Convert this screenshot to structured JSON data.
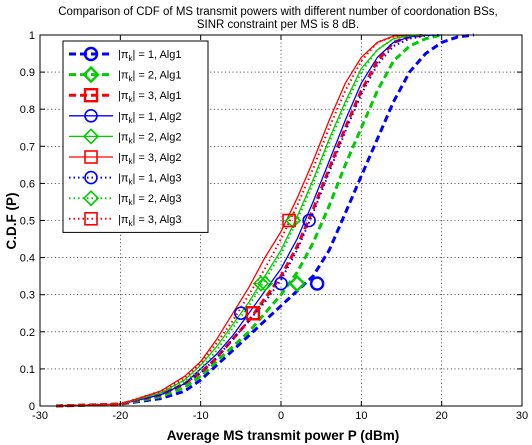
{
  "chart_data": {
    "type": "line",
    "title": "Comparison of CDF of MS transmit powers with different number of coordonation BSs,",
    "subtitle": "SINR constraint per MS is 8 dB.",
    "xlabel": "Average MS transmit power P (dBm)",
    "ylabel": "C.D.F (P)",
    "xlim": [
      -30,
      30
    ],
    "ylim": [
      0,
      1
    ],
    "xticks": [
      -30,
      -20,
      -10,
      0,
      10,
      20,
      30
    ],
    "yticks": [
      0,
      0.1,
      0.2,
      0.3,
      0.4,
      0.5,
      0.6,
      0.7,
      0.8,
      0.9,
      1
    ],
    "grid": true,
    "legend_position": "top-left",
    "series": [
      {
        "name": "|π_k| = 1, Alg1",
        "legend_prefix": "|π",
        "legend_sub": "k",
        "legend_suffix": "| = 1, Alg1",
        "color": "#0000ff",
        "dash": "dashed",
        "width": 3,
        "marker": "circle",
        "marker_points": [
          [
            4.5,
            0.33
          ]
        ],
        "x": [
          -28,
          -20,
          -15,
          -12,
          -10,
          -8,
          -6,
          -4,
          -2,
          0,
          2,
          4,
          6,
          8,
          10,
          12,
          14,
          16,
          18,
          20,
          22,
          24
        ],
        "y": [
          0,
          0.005,
          0.02,
          0.04,
          0.07,
          0.11,
          0.15,
          0.19,
          0.23,
          0.27,
          0.31,
          0.35,
          0.42,
          0.52,
          0.62,
          0.72,
          0.82,
          0.9,
          0.95,
          0.98,
          0.995,
          1
        ]
      },
      {
        "name": "|π_k| = 2, Alg1",
        "legend_prefix": "|π",
        "legend_sub": "k",
        "legend_suffix": "| = 2, Alg1",
        "color": "#00cc00",
        "dash": "dashed",
        "width": 3,
        "marker": "diamond",
        "marker_points": [
          [
            2,
            0.33
          ]
        ],
        "x": [
          -28,
          -20,
          -15,
          -12,
          -10,
          -8,
          -6,
          -4,
          -2,
          0,
          2,
          4,
          6,
          8,
          10,
          12,
          14,
          16,
          18,
          20
        ],
        "y": [
          0,
          0.005,
          0.025,
          0.05,
          0.08,
          0.12,
          0.16,
          0.2,
          0.25,
          0.3,
          0.36,
          0.44,
          0.54,
          0.65,
          0.75,
          0.85,
          0.93,
          0.97,
          0.99,
          1
        ]
      },
      {
        "name": "|π_k| = 3, Alg1",
        "legend_prefix": "|π",
        "legend_sub": "k",
        "legend_suffix": "| = 3, Alg1",
        "color": "#ff0000",
        "dash": "dashed",
        "width": 3,
        "marker": "square",
        "marker_points": [
          [
            -3.5,
            0.25
          ]
        ],
        "x": [
          -28,
          -20,
          -15,
          -12,
          -10,
          -8,
          -6,
          -4,
          -2,
          0,
          2,
          4,
          6,
          8,
          10,
          12,
          14,
          16,
          18
        ],
        "y": [
          0,
          0.005,
          0.03,
          0.06,
          0.09,
          0.13,
          0.18,
          0.23,
          0.29,
          0.35,
          0.43,
          0.53,
          0.64,
          0.75,
          0.85,
          0.93,
          0.98,
          0.995,
          1
        ]
      },
      {
        "name": "|π_k| = 1, Alg2",
        "legend_prefix": "|π",
        "legend_sub": "k",
        "legend_suffix": "| = 1, Alg2",
        "color": "#0000ff",
        "dash": "solid",
        "width": 1.3,
        "marker": "circle",
        "marker_points": [
          [
            -5,
            0.25
          ],
          [
            3.5,
            0.5
          ]
        ],
        "x": [
          -28,
          -20,
          -15,
          -12,
          -10,
          -8,
          -6,
          -4,
          -2,
          0,
          2,
          4,
          6,
          8,
          10,
          12,
          14,
          16,
          18,
          20
        ],
        "y": [
          0,
          0.005,
          0.03,
          0.06,
          0.1,
          0.14,
          0.19,
          0.25,
          0.31,
          0.37,
          0.45,
          0.55,
          0.66,
          0.77,
          0.87,
          0.94,
          0.98,
          0.995,
          0.999,
          1
        ]
      },
      {
        "name": "|π_k| = 2, Alg2",
        "legend_prefix": "|π",
        "legend_sub": "k",
        "legend_suffix": "| = 2, Alg2",
        "color": "#00cc00",
        "dash": "solid",
        "width": 1.3,
        "marker": "diamond",
        "marker_points": [
          [
            -2,
            0.33
          ],
          [
            1.5,
            0.5
          ]
        ],
        "x": [
          -28,
          -20,
          -15,
          -12,
          -10,
          -8,
          -6,
          -4,
          -2,
          0,
          2,
          4,
          6,
          8,
          10,
          12,
          14,
          16,
          18
        ],
        "y": [
          0,
          0.005,
          0.035,
          0.07,
          0.11,
          0.16,
          0.22,
          0.28,
          0.35,
          0.42,
          0.51,
          0.61,
          0.72,
          0.82,
          0.91,
          0.96,
          0.99,
          0.998,
          1
        ]
      },
      {
        "name": "|π_k| = 3, Alg2",
        "legend_prefix": "|π",
        "legend_sub": "k",
        "legend_suffix": "| = 3, Alg2",
        "color": "#ff0000",
        "dash": "solid",
        "width": 1.3,
        "marker": "square",
        "marker_points": [
          [
            -3.5,
            0.25
          ],
          [
            1,
            0.5
          ]
        ],
        "x": [
          -28,
          -20,
          -15,
          -12,
          -10,
          -8,
          -6,
          -4,
          -2,
          0,
          2,
          4,
          6,
          8,
          10,
          12,
          14,
          16
        ],
        "y": [
          0,
          0.005,
          0.04,
          0.08,
          0.12,
          0.18,
          0.25,
          0.32,
          0.4,
          0.47,
          0.56,
          0.66,
          0.77,
          0.87,
          0.94,
          0.98,
          0.997,
          1
        ]
      },
      {
        "name": "|π_k| = 1, Alg3",
        "legend_prefix": "|π",
        "legend_sub": "k",
        "legend_suffix": "| = 1, Alg3",
        "color": "#0000ff",
        "dash": "dotted",
        "width": 2,
        "marker": "circle",
        "marker_points": [
          [
            0,
            0.33
          ]
        ],
        "x": [
          -28,
          -20,
          -15,
          -12,
          -10,
          -8,
          -6,
          -4,
          -2,
          0,
          2,
          4,
          6,
          8,
          10,
          12,
          14,
          16,
          18,
          20
        ],
        "y": [
          0,
          0.005,
          0.03,
          0.06,
          0.09,
          0.13,
          0.18,
          0.23,
          0.28,
          0.34,
          0.42,
          0.52,
          0.63,
          0.74,
          0.84,
          0.92,
          0.97,
          0.99,
          0.998,
          1
        ]
      },
      {
        "name": "|π_k| = 2, Alg3",
        "legend_prefix": "|π",
        "legend_sub": "k",
        "legend_suffix": "| = 2, Alg3",
        "color": "#00cc00",
        "dash": "dotted",
        "width": 2,
        "marker": "diamond",
        "marker_points": [
          [
            -2.5,
            0.33
          ]
        ],
        "x": [
          -28,
          -20,
          -15,
          -12,
          -10,
          -8,
          -6,
          -4,
          -2,
          0,
          2,
          4,
          6,
          8,
          10,
          12,
          14,
          16,
          18
        ],
        "y": [
          0,
          0.005,
          0.035,
          0.065,
          0.1,
          0.15,
          0.21,
          0.27,
          0.34,
          0.41,
          0.5,
          0.6,
          0.71,
          0.81,
          0.9,
          0.96,
          0.99,
          0.998,
          1
        ]
      },
      {
        "name": "|π_k| = 3, Alg3",
        "legend_prefix": "|π",
        "legend_sub": "k",
        "legend_suffix": "| = 3, Alg3",
        "color": "#ff0000",
        "dash": "dotted",
        "width": 2,
        "marker": "square",
        "marker_points": [
          [
            -3.5,
            0.25
          ]
        ],
        "x": [
          -28,
          -20,
          -15,
          -12,
          -10,
          -8,
          -6,
          -4,
          -2,
          0,
          2,
          4,
          6,
          8,
          10,
          12,
          14,
          16
        ],
        "y": [
          0,
          0.005,
          0.04,
          0.075,
          0.115,
          0.17,
          0.23,
          0.3,
          0.37,
          0.45,
          0.54,
          0.64,
          0.75,
          0.85,
          0.93,
          0.98,
          0.996,
          1
        ]
      }
    ]
  }
}
